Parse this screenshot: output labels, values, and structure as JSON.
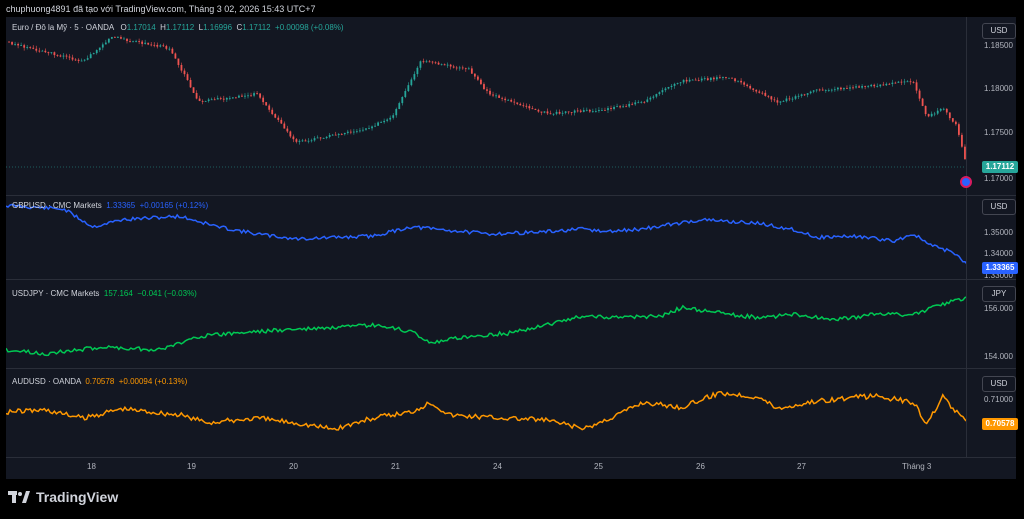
{
  "header": {
    "text": "chuphuong4891 đã tạo với TradingView.com, Tháng 3 02, 2026 15:43 UTC+7"
  },
  "panes": [
    {
      "symbol": "Euro / Đô la Mỹ · 5 · OANDA",
      "ohlc": {
        "o_label": "O",
        "o": "1.17014",
        "h_label": "H",
        "h": "1.17112",
        "l_label": "L",
        "l": "1.16996",
        "c_label": "C",
        "c": "1.17112",
        "change": "+0.00098 (+0.08%)"
      },
      "currency": "USD",
      "ticks": [
        "1.18500",
        "1.18000",
        "1.17500",
        "1.17000"
      ],
      "last_price": "1.17112",
      "color": "#26a69a",
      "down_color": "#ef5350",
      "type": "candles"
    },
    {
      "symbol": "GBPUSD · CMC Markets",
      "value": "1.33365",
      "change": "+0.00165 (+0.12%)",
      "currency": "USD",
      "ticks": [
        "1.35000",
        "1.34000",
        "1.33000"
      ],
      "last_price": "1.33365",
      "color": "#2962ff",
      "type": "line"
    },
    {
      "symbol": "USDJPY · CMC Markets",
      "value": "157.164",
      "change": "−0.041 (−0.03%)",
      "currency": "JPY",
      "ticks": [
        "156.000",
        "154.000"
      ],
      "color": "#00c853",
      "type": "line"
    },
    {
      "symbol": "AUDUSD · OANDA",
      "value": "0.70578",
      "change": "+0.00094 (+0.13%)",
      "currency": "USD",
      "ticks": [
        "0.71000"
      ],
      "last_price": "0.70578",
      "color": "#ff9800",
      "type": "line"
    }
  ],
  "x_axis": [
    "18",
    "19",
    "20",
    "21",
    "24",
    "25",
    "26",
    "27",
    "Tháng 3"
  ],
  "footer": {
    "brand": "TradingView"
  },
  "icons": {
    "logo": "tradingview-logo-icon",
    "reset": "chart-reset-icon"
  }
}
